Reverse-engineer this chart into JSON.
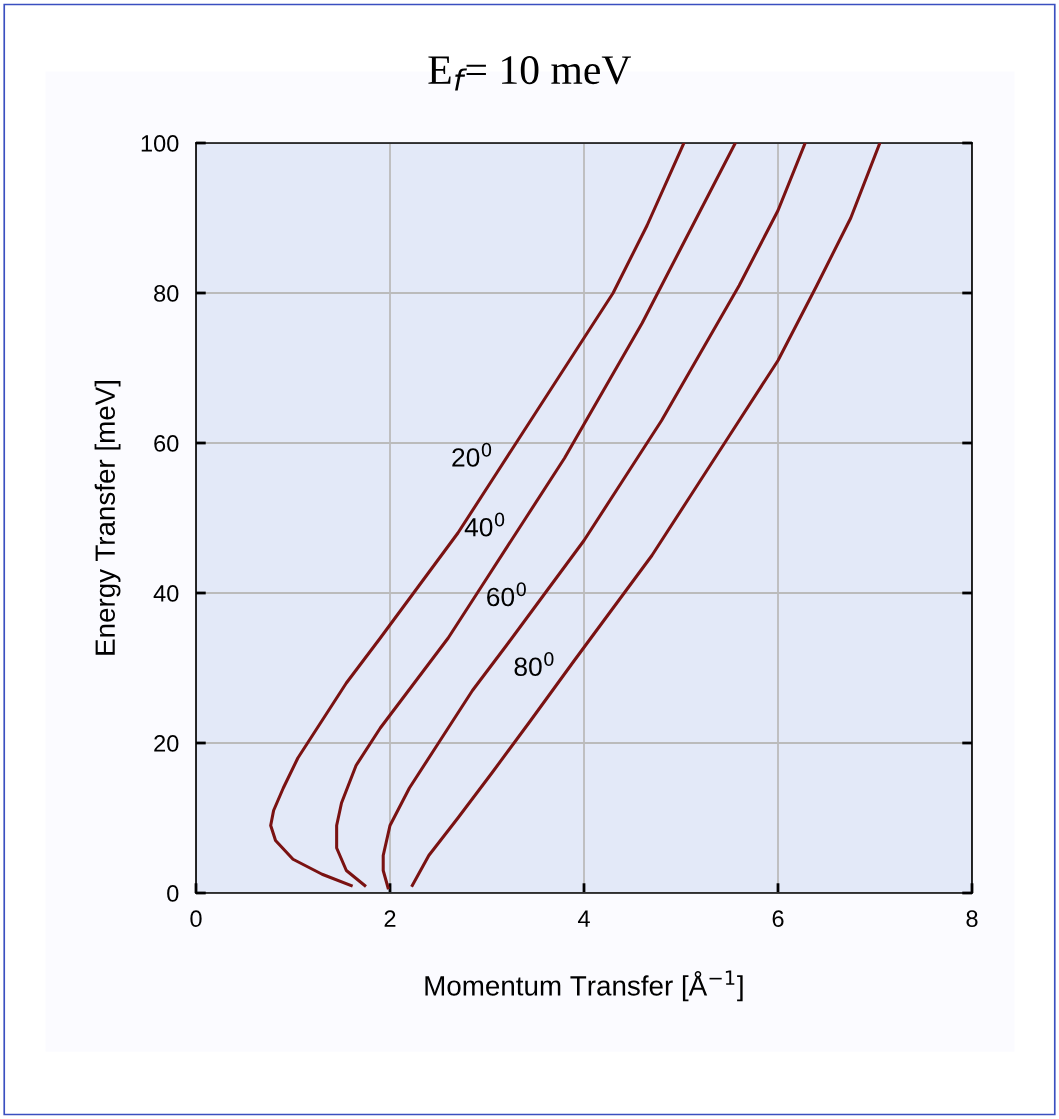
{
  "chart_data": {
    "type": "line",
    "title": "E$_{f}$= 10 meV",
    "xlabel": "Momentum Transfer [Å$^{−1}$]",
    "ylabel": "Energy Transfer [meV]",
    "xlim": [
      0,
      8
    ],
    "xticks": [
      0,
      2,
      4,
      6,
      8
    ],
    "ylim": [
      0,
      100
    ],
    "yticks": [
      0,
      20,
      40,
      60,
      80,
      100
    ],
    "grid": true,
    "marker": "none",
    "line_style": "solid",
    "series": [
      {
        "name": "20$^{0}$",
        "color": "#7a1212",
        "x": [
          1.6,
          1.3,
          1.0,
          0.82,
          0.77,
          0.8,
          0.9,
          1.05,
          1.3,
          1.55,
          1.9,
          2.3,
          2.7,
          3.1,
          3.5,
          3.9,
          4.3,
          4.65,
          5.03
        ],
        "values": [
          1,
          2.5,
          4.5,
          7,
          9,
          11,
          14,
          18,
          23,
          28,
          34,
          41,
          48,
          56,
          64,
          72,
          80,
          89,
          100
        ]
      },
      {
        "name": "40$^{0}$",
        "color": "#7a1212",
        "x": [
          1.74,
          1.55,
          1.45,
          1.45,
          1.5,
          1.65,
          1.9,
          2.25,
          2.6,
          3.0,
          3.4,
          3.8,
          4.2,
          4.6,
          5.0,
          5.56
        ],
        "values": [
          1,
          3,
          6,
          9,
          12,
          17,
          22,
          28,
          34,
          42,
          50,
          58,
          67,
          76,
          86,
          100
        ]
      },
      {
        "name": "60$^{0}$",
        "color": "#7a1212",
        "x": [
          1.98,
          1.93,
          1.93,
          2.0,
          2.2,
          2.5,
          2.85,
          3.2,
          3.6,
          4.0,
          4.4,
          4.8,
          5.2,
          5.6,
          6.0,
          6.28
        ],
        "values": [
          0.7,
          3,
          5,
          9,
          14,
          20,
          27,
          33,
          40,
          47,
          55,
          63,
          72,
          81,
          91,
          100
        ]
      },
      {
        "name": "80$^{0}$",
        "color": "#7a1212",
        "x": [
          2.23,
          2.4,
          2.7,
          3.05,
          3.45,
          3.9,
          4.3,
          4.7,
          5.1,
          5.5,
          6.0,
          6.4,
          6.75,
          7.05
        ],
        "values": [
          1,
          5,
          10,
          16,
          23,
          31,
          38,
          45,
          53,
          61,
          71,
          81,
          90,
          100
        ]
      }
    ]
  }
}
